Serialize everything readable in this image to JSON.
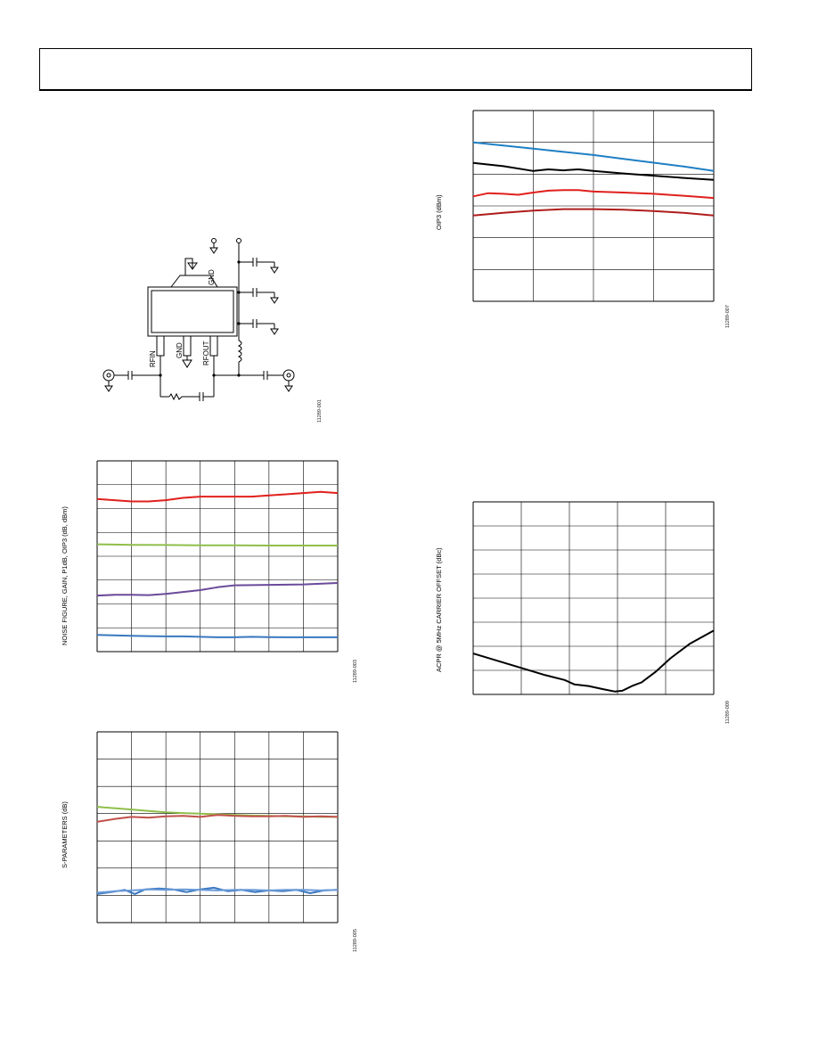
{
  "page": {
    "header": ""
  },
  "schematic": {
    "pin_labels": [
      "GND",
      "RFIN",
      "GND",
      "RFOUT"
    ],
    "figure_id": "11289-001"
  },
  "charts": {
    "nf_gain": {
      "ylabel": "NOISE FIGURE, GAIN, P1dB, OIP3 (dB, dBm)",
      "figure_id": "11289-003"
    },
    "sparams": {
      "ylabel": "S-PARAMETERS (dB)",
      "figure_id": "11289-005"
    },
    "oip3": {
      "ylabel": "OIP3 (dBm)",
      "figure_id": "11289-007"
    },
    "acpr": {
      "ylabel": "ACPR @ 5MHz CARRIER OFFSET (dBc)",
      "figure_id": "11289-009"
    }
  },
  "chart_data": [
    {
      "id": "nf_gain",
      "type": "line",
      "grid": true,
      "cols": 7,
      "rows": 8,
      "ylim": [
        0,
        8
      ],
      "xlim": [
        0,
        7
      ],
      "series": [
        {
          "color": "#e0201c",
          "x": [
            0,
            0.5,
            1,
            1.5,
            2,
            2.5,
            3,
            3.5,
            4,
            4.5,
            5,
            5.5,
            6,
            6.5,
            7
          ],
          "y": [
            6.4,
            6.35,
            6.3,
            6.3,
            6.35,
            6.45,
            6.5,
            6.5,
            6.5,
            6.5,
            6.55,
            6.6,
            6.65,
            6.7,
            6.65
          ]
        },
        {
          "color": "#8fbf4a",
          "x": [
            0,
            1,
            2,
            3,
            4,
            5,
            6,
            7
          ],
          "y": [
            4.5,
            4.48,
            4.47,
            4.46,
            4.46,
            4.45,
            4.45,
            4.45
          ]
        },
        {
          "color": "#6a4a9a",
          "x": [
            0,
            0.5,
            1,
            1.5,
            2,
            2.5,
            3,
            3.5,
            4,
            5,
            6,
            7
          ],
          "y": [
            2.35,
            2.38,
            2.38,
            2.37,
            2.42,
            2.5,
            2.58,
            2.7,
            2.78,
            2.8,
            2.82,
            2.88
          ]
        },
        {
          "color": "#3a78c0",
          "x": [
            0,
            0.5,
            1,
            1.5,
            2,
            2.5,
            3,
            3.5,
            4,
            4.5,
            5,
            5.5,
            6,
            6.5,
            7
          ],
          "y": [
            0.7,
            0.68,
            0.66,
            0.65,
            0.64,
            0.64,
            0.62,
            0.6,
            0.6,
            0.62,
            0.61,
            0.6,
            0.6,
            0.6,
            0.6
          ]
        }
      ]
    },
    {
      "id": "sparams",
      "type": "line",
      "grid": true,
      "cols": 7,
      "rows": 7,
      "ylim": [
        0,
        7
      ],
      "xlim": [
        0,
        7
      ],
      "series": [
        {
          "color": "#8fbf4a",
          "x": [
            0,
            0.5,
            1,
            1.5,
            2,
            2.5,
            3,
            3.5,
            4,
            4.5,
            5,
            5.5,
            6,
            6.5,
            7
          ],
          "y": [
            4.25,
            4.2,
            4.15,
            4.1,
            4.05,
            4.02,
            4.0,
            3.97,
            3.95,
            3.93,
            3.92,
            3.9,
            3.9,
            3.88,
            3.88
          ]
        },
        {
          "color": "#c0504a",
          "x": [
            0,
            0.5,
            1,
            1.5,
            2,
            2.5,
            3,
            3.5,
            4,
            4.5,
            5,
            5.5,
            6,
            6.5,
            7
          ],
          "y": [
            3.7,
            3.8,
            3.88,
            3.85,
            3.9,
            3.92,
            3.88,
            3.95,
            3.92,
            3.9,
            3.9,
            3.92,
            3.88,
            3.9,
            3.88
          ]
        },
        {
          "color": "#3a78c0",
          "x": [
            0,
            0.4,
            0.8,
            1.1,
            1.4,
            1.8,
            2.2,
            2.6,
            3.0,
            3.4,
            3.8,
            4.2,
            4.6,
            5.0,
            5.4,
            5.8,
            6.2,
            6.6,
            7
          ],
          "y": [
            1.05,
            1.12,
            1.2,
            1.05,
            1.22,
            1.25,
            1.22,
            1.12,
            1.22,
            1.28,
            1.15,
            1.2,
            1.12,
            1.18,
            1.15,
            1.2,
            1.08,
            1.18,
            1.2
          ]
        },
        {
          "color": "#6a9ad8",
          "x": [
            0,
            0.5,
            1,
            1.5,
            2,
            2.5,
            3,
            3.5,
            4,
            4.5,
            5,
            5.5,
            6,
            6.5,
            7
          ],
          "y": [
            1.1,
            1.15,
            1.18,
            1.22,
            1.2,
            1.22,
            1.2,
            1.18,
            1.2,
            1.2,
            1.18,
            1.2,
            1.2,
            1.18,
            1.2
          ]
        }
      ]
    },
    {
      "id": "oip3",
      "type": "line",
      "grid": true,
      "cols": 4,
      "rows": 6,
      "ylim": [
        0,
        6
      ],
      "xlim": [
        0,
        4
      ],
      "series": [
        {
          "color": "#1f7fc4",
          "x": [
            0,
            0.5,
            1,
            1.5,
            2,
            2.5,
            3,
            3.5,
            4
          ],
          "y": [
            5.0,
            4.9,
            4.8,
            4.7,
            4.6,
            4.48,
            4.36,
            4.24,
            4.1
          ]
        },
        {
          "color": "#000000",
          "x": [
            0,
            0.5,
            1,
            1.25,
            1.5,
            1.75,
            2,
            2.5,
            3,
            3.5,
            4
          ],
          "y": [
            4.35,
            4.25,
            4.1,
            4.15,
            4.12,
            4.15,
            4.1,
            4.02,
            3.95,
            3.88,
            3.82
          ]
        },
        {
          "color": "#e0201c",
          "x": [
            0,
            0.25,
            0.5,
            0.75,
            1,
            1.25,
            1.5,
            1.75,
            2,
            2.5,
            3,
            3.5,
            4
          ],
          "y": [
            3.3,
            3.4,
            3.38,
            3.35,
            3.42,
            3.48,
            3.5,
            3.5,
            3.45,
            3.42,
            3.38,
            3.32,
            3.25
          ]
        },
        {
          "color": "#b01c1c",
          "x": [
            0,
            0.5,
            1,
            1.5,
            2,
            2.5,
            3,
            3.5,
            4
          ],
          "y": [
            2.7,
            2.78,
            2.85,
            2.9,
            2.9,
            2.88,
            2.84,
            2.78,
            2.7
          ]
        }
      ]
    },
    {
      "id": "acpr",
      "type": "line",
      "grid": true,
      "cols": 5,
      "rows": 8,
      "ylim": [
        0,
        8
      ],
      "xlim": [
        0,
        5
      ],
      "series": [
        {
          "color": "#000000",
          "x": [
            0,
            0.5,
            1,
            1.5,
            1.9,
            2.1,
            2.4,
            2.7,
            2.95,
            3.1,
            3.3,
            3.5,
            3.8,
            4.1,
            4.5,
            5
          ],
          "y": [
            1.7,
            1.4,
            1.1,
            0.8,
            0.6,
            0.42,
            0.35,
            0.22,
            0.12,
            0.15,
            0.35,
            0.5,
            0.95,
            1.5,
            2.1,
            2.65
          ]
        }
      ]
    }
  ]
}
